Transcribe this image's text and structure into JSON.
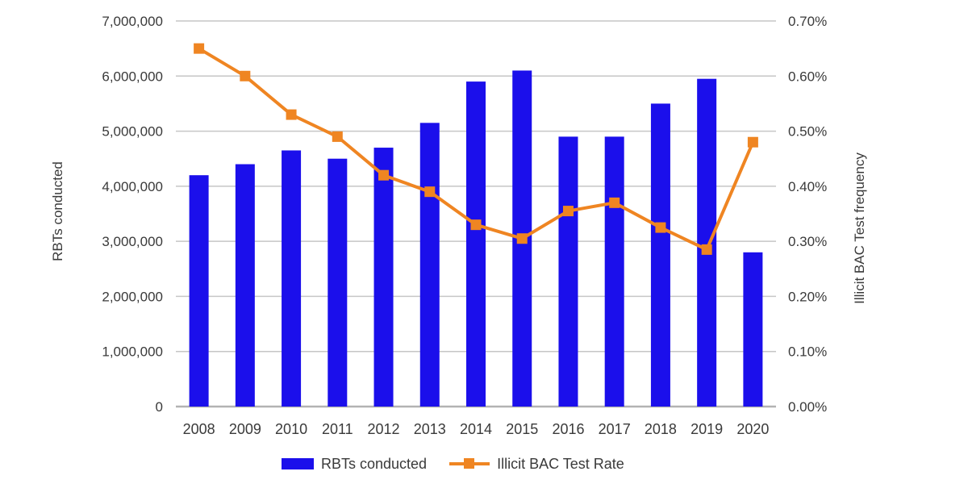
{
  "chart_data": {
    "type": "bar+line",
    "title": "",
    "categories": [
      "2008",
      "2009",
      "2010",
      "2011",
      "2012",
      "2013",
      "2014",
      "2015",
      "2016",
      "2017",
      "2018",
      "2019",
      "2020"
    ],
    "series": [
      {
        "name": "RBTs conducted",
        "type": "bar",
        "axis": "left",
        "values": [
          4200000,
          4400000,
          4650000,
          4500000,
          4700000,
          5150000,
          5900000,
          6100000,
          4900000,
          4900000,
          5500000,
          5950000,
          2800000
        ]
      },
      {
        "name": "Illicit BAC Test Rate",
        "type": "line",
        "axis": "right",
        "values": [
          0.65,
          0.6,
          0.53,
          0.49,
          0.42,
          0.39,
          0.33,
          0.305,
          0.355,
          0.37,
          0.325,
          0.285,
          0.48
        ]
      }
    ],
    "left_axis": {
      "label": "RBTs conducted",
      "min": 0,
      "max": 7000000,
      "step": 1000000,
      "tick_labels": [
        "0",
        "1,000,000",
        "2,000,000",
        "3,000,000",
        "4,000,000",
        "5,000,000",
        "6,000,000",
        "7,000,000"
      ]
    },
    "right_axis": {
      "label": "Illicit BAC Test frequency",
      "min": 0,
      "max": 0.7,
      "step": 0.1,
      "tick_labels": [
        "0.00%",
        "0.10%",
        "0.20%",
        "0.30%",
        "0.40%",
        "0.50%",
        "0.60%",
        "0.70%"
      ]
    },
    "legend_position": "bottom",
    "grid": true
  },
  "colors": {
    "bar": "#1b0feb",
    "line": "#ef8522",
    "grid": "#c6c6c6",
    "axis": "#b3b3b3",
    "text": "#3a3a3a"
  }
}
